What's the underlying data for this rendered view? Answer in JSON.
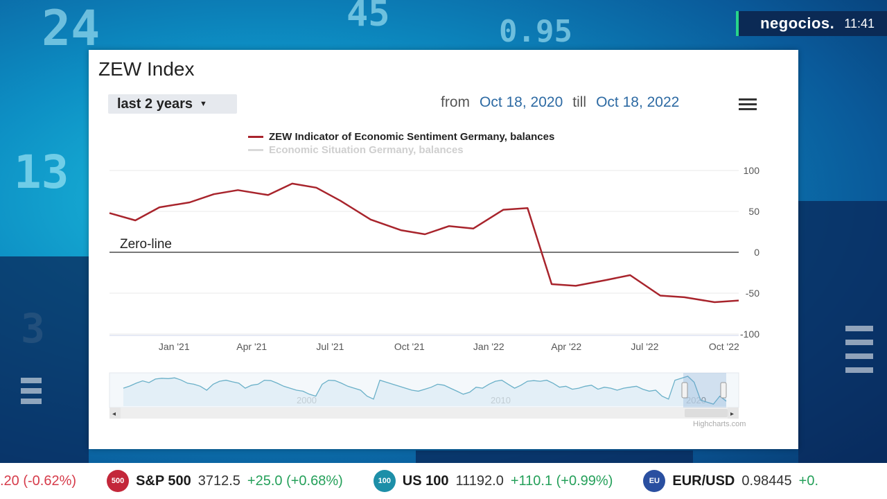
{
  "brand": {
    "name": "negocios.",
    "time": "11:41"
  },
  "background": {
    "numbers": [
      "24",
      "45",
      "0.95",
      "13",
      "3"
    ]
  },
  "panel": {
    "title": "ZEW Index",
    "range_select": {
      "label": "last 2 years"
    },
    "date_range": {
      "from_label": "from",
      "from_date": "Oct 18, 2020",
      "till_label": "till",
      "till_date": "Oct 18, 2022"
    },
    "menu_icon": "hamburger-menu-icon",
    "credit": "Highcharts.com"
  },
  "chart_data": {
    "type": "line",
    "title": "ZEW Index",
    "series": [
      {
        "name": "ZEW Indicator of Economic Sentiment Germany, balances",
        "color": "#a8242c",
        "x": [
          "2020-10-18",
          "2020-11-17",
          "2020-12-15",
          "2021-01-19",
          "2021-02-16",
          "2021-03-16",
          "2021-04-20",
          "2021-05-18",
          "2021-06-15",
          "2021-07-13",
          "2021-08-17",
          "2021-09-21",
          "2021-10-19",
          "2021-11-16",
          "2021-12-14",
          "2022-01-18",
          "2022-02-15",
          "2022-03-15",
          "2022-04-12",
          "2022-05-17",
          "2022-06-14",
          "2022-07-19",
          "2022-08-16",
          "2022-09-20",
          "2022-10-18"
        ],
        "values": [
          48,
          39,
          55,
          61,
          71,
          76,
          70,
          84,
          79,
          63,
          40,
          27,
          22,
          32,
          29,
          52,
          54,
          -39,
          -41,
          -34,
          -28,
          -53,
          -55,
          -61,
          -59
        ]
      },
      {
        "name": "Economic Situation Germany, balances",
        "color": "#d9d9d9",
        "visible": false
      }
    ],
    "x_tick_labels": [
      "Jan '21",
      "Apr '21",
      "Jul '21",
      "Oct '21",
      "Jan '22",
      "Apr '22",
      "Jul '22",
      "Oct '22"
    ],
    "y_tick_labels": [
      "100",
      "50",
      "0",
      "-50",
      "-100"
    ],
    "ylim": [
      -100,
      100
    ],
    "grid": true,
    "annotation": "Zero-line",
    "legend_position": "top-center",
    "navigator": {
      "labels": [
        "2000",
        "2010",
        "2020"
      ],
      "values": [
        20,
        31,
        45,
        57,
        48,
        66,
        70,
        68,
        72,
        61,
        45,
        40,
        30,
        10,
        40,
        55,
        60,
        52,
        45,
        20,
        35,
        40,
        60,
        58,
        45,
        30,
        20,
        10,
        5,
        -10,
        -20,
        40,
        60,
        58,
        45,
        30,
        20,
        10,
        -20,
        -35,
        60,
        50,
        40,
        30,
        20,
        10,
        5,
        15,
        25,
        40,
        35,
        20,
        5,
        -10,
        0,
        25,
        20,
        40,
        55,
        60,
        40,
        20,
        35,
        55,
        58,
        55,
        60,
        45,
        25,
        30,
        15,
        20,
        30,
        35,
        15,
        25,
        20,
        10,
        20,
        25,
        30,
        15,
        5,
        10,
        -20,
        -35,
        60,
        70,
        80,
        50,
        -40,
        -50,
        -60,
        -20,
        -45
      ]
    }
  },
  "ticker": {
    "items": [
      {
        "badge": "",
        "name": "",
        "value": "",
        "change": ".20 (-0.62%)",
        "direction": "neg",
        "color": "#d63b4a"
      },
      {
        "badge": "500",
        "name": "S&P 500",
        "value": "3712.5",
        "change": "+25.0 (+0.68%)",
        "direction": "pos",
        "color": "#c3273a"
      },
      {
        "badge": "100",
        "name": "US 100",
        "value": "11192.0",
        "change": "+110.1 (+0.99%)",
        "direction": "pos",
        "color": "#1d8fa8"
      },
      {
        "badge": "EU",
        "name": "EUR/USD",
        "value": "0.98445",
        "change": "+0.",
        "direction": "pos",
        "color": "#2a4fa0"
      }
    ]
  }
}
